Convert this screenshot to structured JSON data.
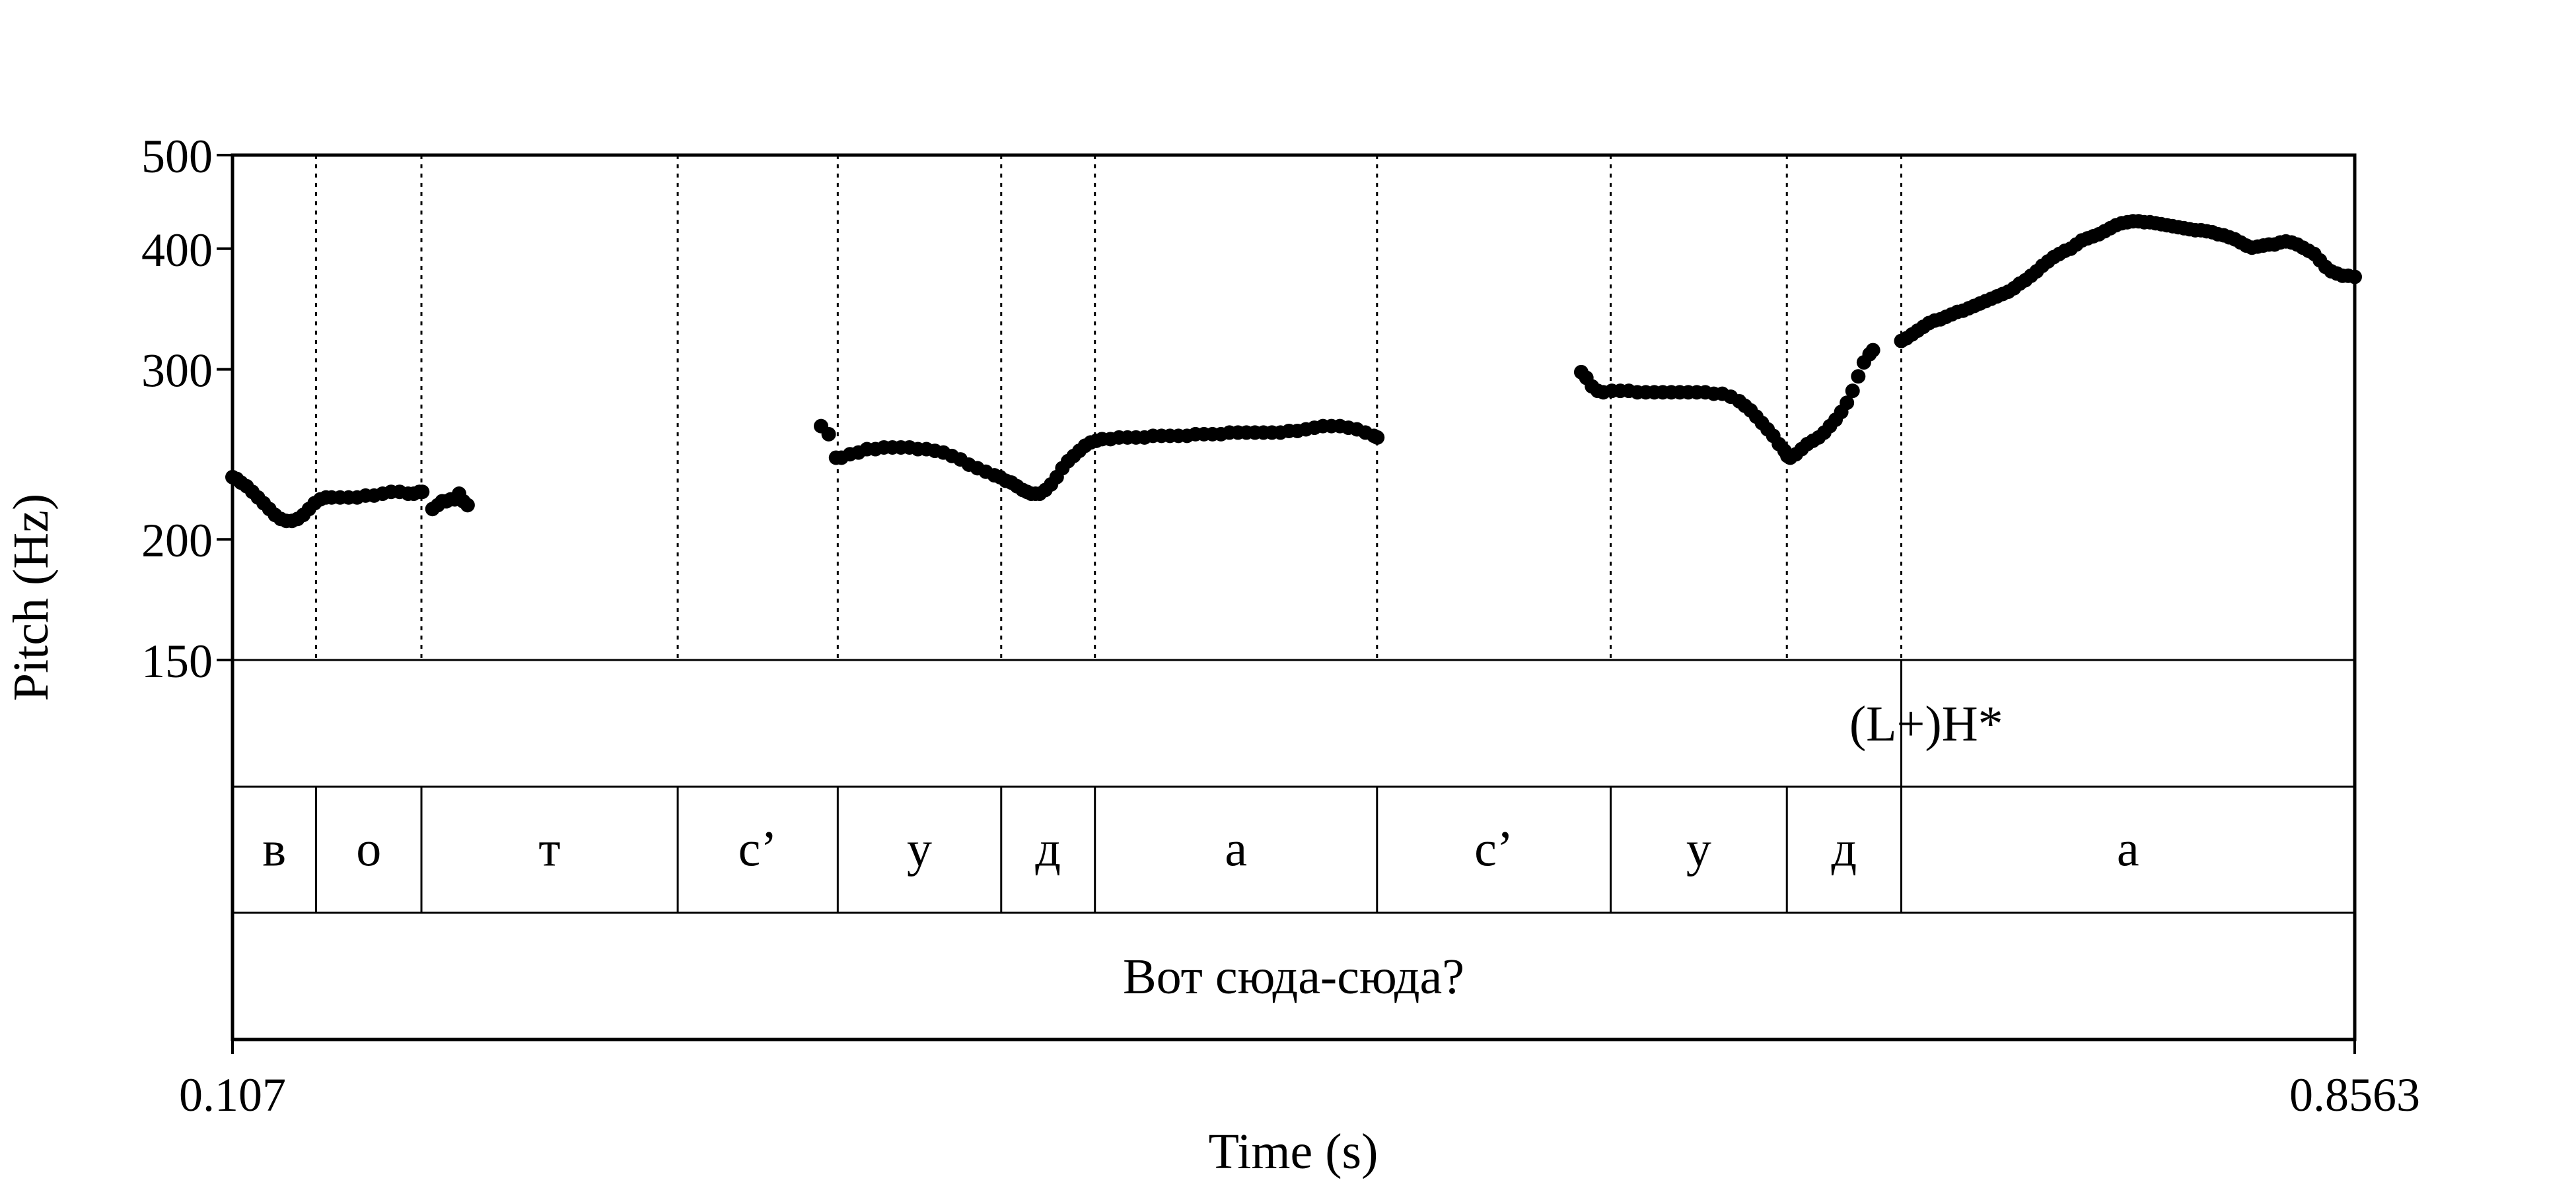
{
  "chart_data": {
    "type": "scatter",
    "title": "",
    "xlabel": "Time (s)",
    "ylabel": "Pitch (Hz)",
    "x_range": [
      0.107,
      0.8563
    ],
    "x_tick_labels": [
      "0.107",
      "0.8563"
    ],
    "y_scale": "log",
    "y_range": [
      150,
      500
    ],
    "y_ticks": [
      500,
      400,
      300,
      200,
      150
    ],
    "y_tick_labels": [
      "500",
      "400",
      "300",
      "200",
      "150"
    ],
    "grid": false,
    "marker_color": "#000000",
    "segment_boundaries": [
      0.107,
      0.1365,
      0.1737,
      0.2642,
      0.3207,
      0.3784,
      0.4115,
      0.5111,
      0.5936,
      0.6558,
      0.6962,
      0.8563
    ],
    "tone_tier": {
      "labels": [
        {
          "text": "(L+)H*",
          "time": 0.705
        }
      ],
      "point_marks": [
        0.6962
      ]
    },
    "segment_tier": {
      "labels": [
        {
          "text": "в",
          "start": 0.107,
          "end": 0.1365
        },
        {
          "text": "о",
          "start": 0.1365,
          "end": 0.1737
        },
        {
          "text": "т",
          "start": 0.1737,
          "end": 0.2642
        },
        {
          "text": "с’",
          "start": 0.2642,
          "end": 0.3207
        },
        {
          "text": "у",
          "start": 0.3207,
          "end": 0.3784
        },
        {
          "text": "д",
          "start": 0.3784,
          "end": 0.4115
        },
        {
          "text": "а",
          "start": 0.4115,
          "end": 0.5111
        },
        {
          "text": "с’",
          "start": 0.5111,
          "end": 0.5936
        },
        {
          "text": "у",
          "start": 0.5936,
          "end": 0.6558
        },
        {
          "text": "д",
          "start": 0.6558,
          "end": 0.6962
        },
        {
          "text": "а",
          "start": 0.6962,
          "end": 0.8563
        }
      ]
    },
    "word_tier": {
      "labels": [
        {
          "text": "Вот сюда-сюда?",
          "start": 0.107,
          "end": 0.8563
        }
      ]
    },
    "series": [
      {
        "points": [
          [
            0.107,
            232
          ],
          [
            0.1085,
            231
          ],
          [
            0.11,
            229
          ],
          [
            0.112,
            227
          ],
          [
            0.114,
            224
          ],
          [
            0.116,
            221
          ],
          [
            0.118,
            218
          ],
          [
            0.12,
            215
          ],
          [
            0.122,
            212
          ],
          [
            0.124,
            210
          ],
          [
            0.126,
            209
          ],
          [
            0.128,
            209
          ],
          [
            0.13,
            210
          ],
          [
            0.132,
            212
          ],
          [
            0.134,
            215
          ],
          [
            0.136,
            218
          ],
          [
            0.138,
            220
          ],
          [
            0.14,
            221
          ],
          [
            0.142,
            221
          ],
          [
            0.145,
            221
          ],
          [
            0.148,
            221
          ],
          [
            0.151,
            221
          ],
          [
            0.154,
            222
          ],
          [
            0.157,
            222
          ],
          [
            0.16,
            223
          ],
          [
            0.163,
            224
          ],
          [
            0.166,
            224
          ],
          [
            0.169,
            223
          ],
          [
            0.171,
            223
          ],
          [
            0.173,
            224
          ],
          [
            0.174,
            224
          ],
          [
            0.1776,
            215
          ],
          [
            0.1795,
            217
          ],
          [
            0.181,
            219
          ],
          [
            0.1825,
            219
          ],
          [
            0.184,
            220
          ],
          [
            0.1855,
            220
          ],
          [
            0.187,
            223
          ],
          [
            0.1885,
            219
          ],
          [
            0.19,
            217
          ],
          [
            0.3148,
            262
          ],
          [
            0.3175,
            257
          ],
          [
            0.3201,
            243
          ],
          [
            0.322,
            243
          ],
          [
            0.325,
            245
          ],
          [
            0.328,
            246
          ],
          [
            0.331,
            248
          ],
          [
            0.334,
            248
          ],
          [
            0.337,
            249
          ],
          [
            0.34,
            249
          ],
          [
            0.343,
            249
          ],
          [
            0.346,
            249
          ],
          [
            0.349,
            248
          ],
          [
            0.352,
            248
          ],
          [
            0.355,
            247
          ],
          [
            0.358,
            246
          ],
          [
            0.361,
            244
          ],
          [
            0.364,
            242
          ],
          [
            0.367,
            239
          ],
          [
            0.37,
            237
          ],
          [
            0.373,
            235
          ],
          [
            0.376,
            233
          ],
          [
            0.378,
            232
          ],
          [
            0.38,
            230
          ],
          [
            0.382,
            229
          ],
          [
            0.384,
            227
          ],
          [
            0.386,
            225
          ],
          [
            0.3875,
            224
          ],
          [
            0.389,
            223
          ],
          [
            0.3905,
            223
          ],
          [
            0.392,
            223
          ],
          [
            0.394,
            225
          ],
          [
            0.396,
            228
          ],
          [
            0.398,
            232
          ],
          [
            0.4,
            237
          ],
          [
            0.402,
            241
          ],
          [
            0.404,
            244
          ],
          [
            0.406,
            247
          ],
          [
            0.408,
            250
          ],
          [
            0.41,
            252
          ],
          [
            0.412,
            253
          ],
          [
            0.414,
            254
          ],
          [
            0.417,
            254
          ],
          [
            0.42,
            255
          ],
          [
            0.423,
            255
          ],
          [
            0.426,
            255
          ],
          [
            0.429,
            255
          ],
          [
            0.432,
            256
          ],
          [
            0.435,
            256
          ],
          [
            0.438,
            256
          ],
          [
            0.441,
            256
          ],
          [
            0.444,
            256
          ],
          [
            0.447,
            257
          ],
          [
            0.45,
            257
          ],
          [
            0.453,
            257
          ],
          [
            0.456,
            257
          ],
          [
            0.459,
            258
          ],
          [
            0.462,
            258
          ],
          [
            0.465,
            258
          ],
          [
            0.468,
            258
          ],
          [
            0.471,
            258
          ],
          [
            0.474,
            258
          ],
          [
            0.477,
            258
          ],
          [
            0.48,
            259
          ],
          [
            0.483,
            259
          ],
          [
            0.486,
            260
          ],
          [
            0.489,
            261
          ],
          [
            0.492,
            262
          ],
          [
            0.495,
            262
          ],
          [
            0.498,
            262
          ],
          [
            0.501,
            261
          ],
          [
            0.504,
            260
          ],
          [
            0.507,
            258
          ],
          [
            0.51,
            256
          ],
          [
            0.5112,
            255
          ],
          [
            0.5832,
            298
          ],
          [
            0.585,
            294
          ],
          [
            0.587,
            288
          ],
          [
            0.589,
            285
          ],
          [
            0.591,
            284
          ],
          [
            0.594,
            285
          ],
          [
            0.597,
            285
          ],
          [
            0.6,
            285
          ],
          [
            0.603,
            284
          ],
          [
            0.606,
            284
          ],
          [
            0.609,
            284
          ],
          [
            0.612,
            284
          ],
          [
            0.615,
            284
          ],
          [
            0.618,
            284
          ],
          [
            0.621,
            284
          ],
          [
            0.624,
            284
          ],
          [
            0.627,
            284
          ],
          [
            0.63,
            283
          ],
          [
            0.633,
            283
          ],
          [
            0.636,
            281
          ],
          [
            0.639,
            278
          ],
          [
            0.641,
            275
          ],
          [
            0.643,
            272
          ],
          [
            0.645,
            268
          ],
          [
            0.647,
            264
          ],
          [
            0.649,
            260
          ],
          [
            0.651,
            256
          ],
          [
            0.653,
            251
          ],
          [
            0.655,
            247
          ],
          [
            0.656,
            244
          ],
          [
            0.657,
            243
          ],
          [
            0.659,
            245
          ],
          [
            0.661,
            248
          ],
          [
            0.663,
            251
          ],
          [
            0.665,
            253
          ],
          [
            0.667,
            255
          ],
          [
            0.669,
            258
          ],
          [
            0.671,
            262
          ],
          [
            0.673,
            266
          ],
          [
            0.675,
            271
          ],
          [
            0.677,
            277
          ],
          [
            0.679,
            285
          ],
          [
            0.681,
            295
          ],
          [
            0.683,
            305
          ],
          [
            0.685,
            311
          ],
          [
            0.6862,
            314
          ],
          [
            0.6962,
            321
          ],
          [
            0.698,
            323
          ],
          [
            0.7,
            326
          ],
          [
            0.702,
            329
          ],
          [
            0.704,
            332
          ],
          [
            0.706,
            335
          ],
          [
            0.708,
            337
          ],
          [
            0.71,
            338
          ],
          [
            0.712,
            340
          ],
          [
            0.714,
            342
          ],
          [
            0.716,
            344
          ],
          [
            0.718,
            345
          ],
          [
            0.72,
            347
          ],
          [
            0.722,
            349
          ],
          [
            0.724,
            351
          ],
          [
            0.726,
            353
          ],
          [
            0.728,
            355
          ],
          [
            0.73,
            357
          ],
          [
            0.732,
            359
          ],
          [
            0.734,
            361
          ],
          [
            0.736,
            364
          ],
          [
            0.738,
            368
          ],
          [
            0.74,
            371
          ],
          [
            0.742,
            375
          ],
          [
            0.744,
            379
          ],
          [
            0.746,
            384
          ],
          [
            0.748,
            388
          ],
          [
            0.75,
            392
          ],
          [
            0.752,
            395
          ],
          [
            0.754,
            398
          ],
          [
            0.756,
            400
          ],
          [
            0.758,
            404
          ],
          [
            0.76,
            408
          ],
          [
            0.762,
            410
          ],
          [
            0.764,
            412
          ],
          [
            0.766,
            414
          ],
          [
            0.768,
            417
          ],
          [
            0.77,
            420
          ],
          [
            0.772,
            423
          ],
          [
            0.774,
            425
          ],
          [
            0.776,
            426
          ],
          [
            0.778,
            427
          ],
          [
            0.78,
            427
          ],
          [
            0.782,
            426
          ],
          [
            0.784,
            426
          ],
          [
            0.786,
            425
          ],
          [
            0.788,
            424
          ],
          [
            0.79,
            423
          ],
          [
            0.792,
            422
          ],
          [
            0.794,
            421
          ],
          [
            0.796,
            420
          ],
          [
            0.798,
            419
          ],
          [
            0.8,
            418
          ],
          [
            0.802,
            418
          ],
          [
            0.804,
            417
          ],
          [
            0.806,
            416
          ],
          [
            0.808,
            414
          ],
          [
            0.81,
            413
          ],
          [
            0.812,
            411
          ],
          [
            0.814,
            409
          ],
          [
            0.816,
            406
          ],
          [
            0.818,
            403
          ],
          [
            0.82,
            401
          ],
          [
            0.822,
            402
          ],
          [
            0.824,
            403
          ],
          [
            0.826,
            404
          ],
          [
            0.828,
            404
          ],
          [
            0.83,
            406
          ],
          [
            0.832,
            407
          ],
          [
            0.834,
            406
          ],
          [
            0.836,
            404
          ],
          [
            0.838,
            401
          ],
          [
            0.84,
            398
          ],
          [
            0.842,
            395
          ],
          [
            0.844,
            389
          ],
          [
            0.846,
            383
          ],
          [
            0.848,
            379
          ],
          [
            0.85,
            377
          ],
          [
            0.852,
            375
          ],
          [
            0.854,
            375
          ],
          [
            0.8563,
            374
          ]
        ]
      }
    ]
  }
}
